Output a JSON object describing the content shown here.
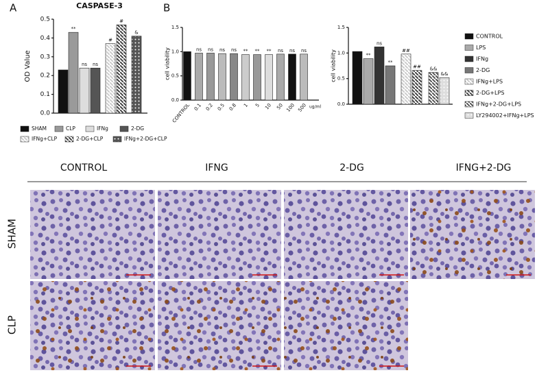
{
  "panel_labels": [
    "A",
    "B"
  ],
  "chart_data": [
    {
      "type": "bar",
      "title": "CASPASE-3",
      "y_label": "OD Value",
      "categories": [
        "SHAM",
        "CLP",
        "IFNg",
        "2-DG",
        "IFNg+CLP",
        "2-DG+CLP",
        "IFNg+2-DG+CLP"
      ],
      "values": [
        0.23,
        0.43,
        0.24,
        0.24,
        0.37,
        0.47,
        0.41
      ],
      "annotations": [
        null,
        "**",
        "ns",
        "ns",
        "#",
        "#",
        "&"
      ],
      "colors": [
        "#111111",
        "#9a9a9a",
        "#dddddd",
        "#555555",
        "#cccccc",
        "#444444",
        "#555555"
      ],
      "patterns": [
        "solid",
        "solid",
        "solid",
        "solid",
        "hatch",
        "hatch",
        "dots"
      ],
      "ylim": [
        0,
        0.5
      ],
      "yticks": [
        {
          "value": 0,
          "label": "0.0"
        },
        0.1,
        0.2,
        0.3,
        0.4,
        0.5
      ],
      "legend": true
    },
    {
      "type": "bar",
      "y_label": "cell viability",
      "x_label": "ug/ml",
      "categories": [
        "CONTROL",
        "0.1",
        "0.2",
        "0.5",
        "0.8",
        "1",
        "5",
        "10",
        "50",
        "100",
        "500"
      ],
      "values": [
        1.0,
        0.97,
        0.97,
        0.96,
        0.96,
        0.94,
        0.94,
        0.94,
        0.95,
        0.95,
        0.95
      ],
      "annotations": [
        null,
        "ns",
        "ns",
        "ns",
        "ns",
        "**",
        "**",
        "**",
        "ns",
        "ns",
        "ns"
      ],
      "colors": [
        "#111111",
        "#aaaaaa",
        "#999999",
        "#bbbbbb",
        "#888888",
        "#cccccc",
        "#999999",
        "#dddddd",
        "#aaaaaa",
        "#111111",
        "#bbbbbb"
      ],
      "patterns": [
        "solid",
        "solid",
        "solid",
        "solid",
        "solid",
        "solid",
        "solid",
        "solid",
        "solid",
        "solid",
        "solid"
      ],
      "ylim": [
        0,
        1.5
      ],
      "yticks": [
        {
          "value": 0,
          "label": "0.0"
        },
        0.5,
        {
          "value": 1,
          "label": "1.0"
        },
        1.5
      ],
      "legend": false
    },
    {
      "type": "bar",
      "y_label": "cell viability",
      "categories": [
        "CONTROL",
        "LPS",
        "IFNg",
        "2-DG",
        "IFNg+LPS",
        "2-DG+LPS",
        "IFNg+2-DG+LPS",
        "LY294002+IFNg+LPS"
      ],
      "values": [
        1.03,
        0.89,
        1.12,
        0.75,
        0.98,
        0.66,
        0.62,
        0.52
      ],
      "annotations": [
        null,
        "**",
        "ns",
        "**",
        "##",
        "##",
        "&&",
        "&&"
      ],
      "colors": [
        "#111111",
        "#aaaaaa",
        "#333333",
        "#777777",
        "#cccccc",
        "#444444",
        "#555555",
        "#dddddd"
      ],
      "patterns": [
        "solid",
        "solid",
        "solid",
        "solid",
        "hatch",
        "hatch",
        "hatch",
        "dots"
      ],
      "ylim": [
        0,
        1.5
      ],
      "yticks": [
        {
          "value": 0,
          "label": "0.0"
        },
        0.5,
        {
          "value": 1,
          "label": "1.0"
        },
        1.5
      ],
      "legend": true
    }
  ],
  "image_grid": {
    "columns": [
      "CONTROL",
      "IFNG",
      "2-DG",
      "IFNG+2-DG"
    ],
    "rows": [
      "SHAM",
      "CLP"
    ]
  }
}
